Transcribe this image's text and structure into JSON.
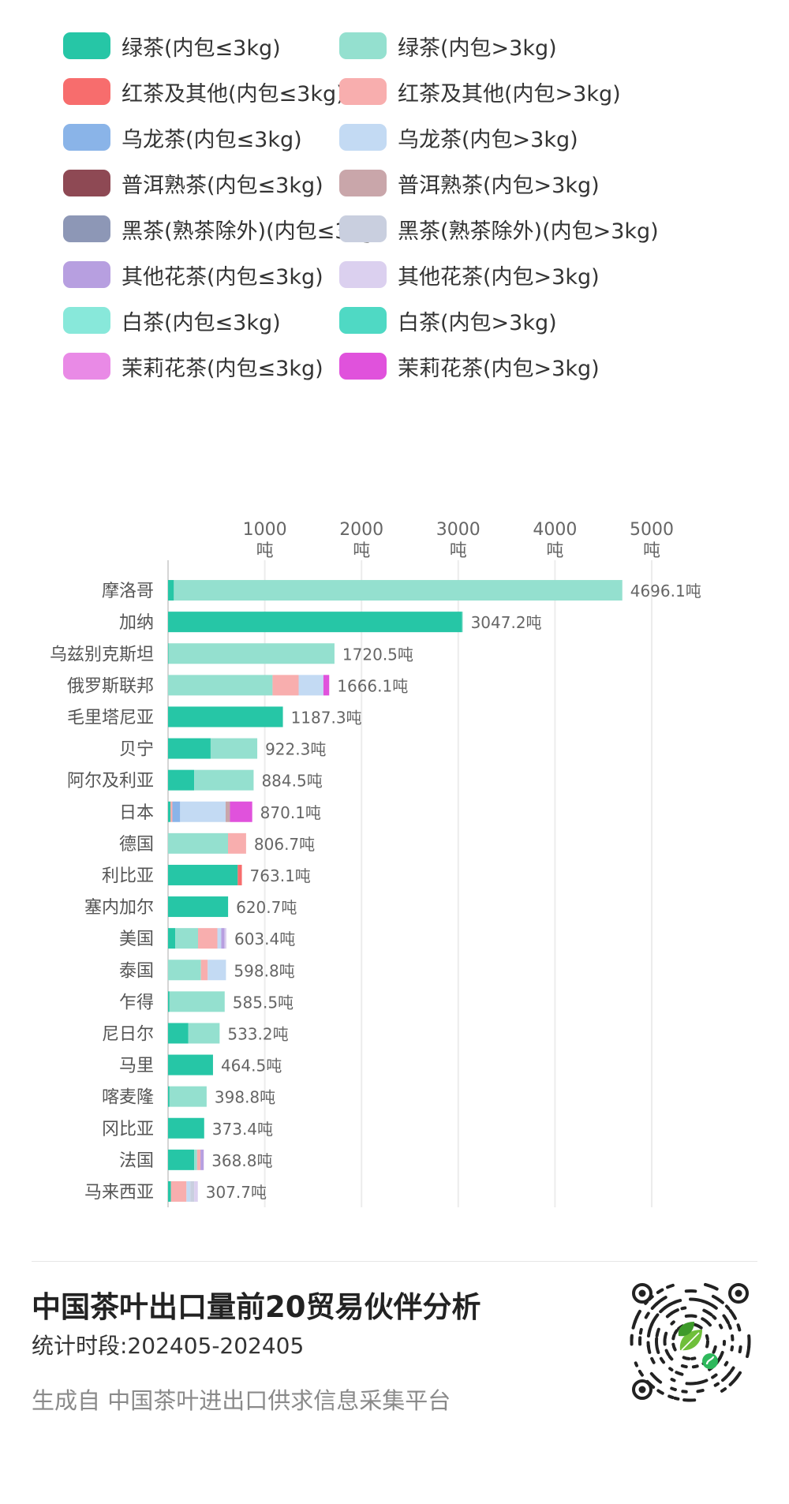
{
  "legend": [
    {
      "label": "绿茶(内包≤3kg)",
      "color": "#26c6a6"
    },
    {
      "label": "绿茶(内包>3kg)",
      "color": "#94e0cf"
    },
    {
      "label": "红茶及其他(内包≤3kg)",
      "color": "#f76d6d"
    },
    {
      "label": "红茶及其他(内包>3kg)",
      "color": "#f8aeae"
    },
    {
      "label": "乌龙茶(内包≤3kg)",
      "color": "#8ab4e8"
    },
    {
      "label": "乌龙茶(内包>3kg)",
      "color": "#c3daf3"
    },
    {
      "label": "普洱熟茶(内包≤3kg)",
      "color": "#8e4954"
    },
    {
      "label": "普洱熟茶(内包>3kg)",
      "color": "#c9a6aa"
    },
    {
      "label": "黑茶(熟茶除外)(内包≤3kg)",
      "color": "#8d97b6"
    },
    {
      "label": "黑茶(熟茶除外)(内包>3kg)",
      "color": "#c9cfdf"
    },
    {
      "label": "其他花茶(内包≤3kg)",
      "color": "#b79fe0"
    },
    {
      "label": "其他花茶(内包>3kg)",
      "color": "#dbd0ef"
    },
    {
      "label": "白茶(内包≤3kg)",
      "color": "#88e8da"
    },
    {
      "label": "白茶(内包>3kg)",
      "color": "#4fd9c4"
    },
    {
      "label": "茉莉花茶(内包≤3kg)",
      "color": "#e98ae6"
    },
    {
      "label": "茉莉花茶(内包>3kg)",
      "color": "#e052dc"
    }
  ],
  "chart_data": {
    "type": "bar",
    "orientation": "horizontal",
    "stacked": true,
    "unit": "吨",
    "xlim": [
      0,
      5000
    ],
    "xticks": [
      1000,
      2000,
      3000,
      4000,
      5000
    ],
    "xtick_labels": [
      {
        "value": "1000",
        "unit": "吨"
      },
      {
        "value": "2000",
        "unit": "吨"
      },
      {
        "value": "3000",
        "unit": "吨"
      },
      {
        "value": "4000",
        "unit": "吨"
      },
      {
        "value": "5000",
        "unit": "吨"
      }
    ],
    "grid": true,
    "legend_position": "top",
    "bars": [
      {
        "category": "摩洛哥",
        "total": 4696.1,
        "total_label": "4696.1吨",
        "segments": [
          {
            "s": 0,
            "v": 60
          },
          {
            "s": 1,
            "v": 4636.1
          }
        ]
      },
      {
        "category": "加纳",
        "total": 3047.2,
        "total_label": "3047.2吨",
        "segments": [
          {
            "s": 0,
            "v": 3040
          },
          {
            "s": 1,
            "v": 7.2
          }
        ]
      },
      {
        "category": "乌兹别克斯坦",
        "total": 1720.5,
        "total_label": "1720.5吨",
        "segments": [
          {
            "s": 0,
            "v": 5
          },
          {
            "s": 1,
            "v": 1715.5
          }
        ]
      },
      {
        "category": "俄罗斯联邦",
        "total": 1666.1,
        "total_label": "1666.1吨",
        "segments": [
          {
            "s": 1,
            "v": 1080
          },
          {
            "s": 3,
            "v": 270
          },
          {
            "s": 5,
            "v": 256.1
          },
          {
            "s": 15,
            "v": 60
          }
        ]
      },
      {
        "category": "毛里塔尼亚",
        "total": 1187.3,
        "total_label": "1187.3吨",
        "segments": [
          {
            "s": 0,
            "v": 1187.3
          }
        ]
      },
      {
        "category": "贝宁",
        "total": 922.3,
        "total_label": "922.3吨",
        "segments": [
          {
            "s": 0,
            "v": 440
          },
          {
            "s": 1,
            "v": 482.3
          }
        ]
      },
      {
        "category": "阿尔及利亚",
        "total": 884.5,
        "total_label": "884.5吨",
        "segments": [
          {
            "s": 0,
            "v": 270
          },
          {
            "s": 1,
            "v": 614.5
          }
        ]
      },
      {
        "category": "日本",
        "total": 870.1,
        "total_label": "870.1吨",
        "segments": [
          {
            "s": 0,
            "v": 25
          },
          {
            "s": 3,
            "v": 20
          },
          {
            "s": 4,
            "v": 80
          },
          {
            "s": 5,
            "v": 470
          },
          {
            "s": 7,
            "v": 45
          },
          {
            "s": 15,
            "v": 230.1
          }
        ]
      },
      {
        "category": "德国",
        "total": 806.7,
        "total_label": "806.7吨",
        "segments": [
          {
            "s": 1,
            "v": 620
          },
          {
            "s": 3,
            "v": 186.7
          }
        ]
      },
      {
        "category": "利比亚",
        "total": 763.1,
        "total_label": "763.1吨",
        "segments": [
          {
            "s": 0,
            "v": 720
          },
          {
            "s": 2,
            "v": 43.1
          }
        ]
      },
      {
        "category": "塞内加尔",
        "total": 620.7,
        "total_label": "620.7吨",
        "segments": [
          {
            "s": 0,
            "v": 620.7
          }
        ]
      },
      {
        "category": "美国",
        "total": 603.4,
        "total_label": "603.4吨",
        "segments": [
          {
            "s": 0,
            "v": 75
          },
          {
            "s": 1,
            "v": 235
          },
          {
            "s": 3,
            "v": 200
          },
          {
            "s": 5,
            "v": 40
          },
          {
            "s": 10,
            "v": 33.4
          },
          {
            "s": 11,
            "v": 20
          }
        ]
      },
      {
        "category": "泰国",
        "total": 598.8,
        "total_label": "598.8吨",
        "segments": [
          {
            "s": 1,
            "v": 340
          },
          {
            "s": 3,
            "v": 70
          },
          {
            "s": 5,
            "v": 188.8
          }
        ]
      },
      {
        "category": "乍得",
        "total": 585.5,
        "total_label": "585.5吨",
        "segments": [
          {
            "s": 0,
            "v": 15
          },
          {
            "s": 1,
            "v": 570.5
          }
        ]
      },
      {
        "category": "尼日尔",
        "total": 533.2,
        "total_label": "533.2吨",
        "segments": [
          {
            "s": 0,
            "v": 210
          },
          {
            "s": 1,
            "v": 323.2
          }
        ]
      },
      {
        "category": "马里",
        "total": 464.5,
        "total_label": "464.5吨",
        "segments": [
          {
            "s": 0,
            "v": 464.5
          }
        ]
      },
      {
        "category": "喀麦隆",
        "total": 398.8,
        "total_label": "398.8吨",
        "segments": [
          {
            "s": 0,
            "v": 15
          },
          {
            "s": 1,
            "v": 383.8
          }
        ]
      },
      {
        "category": "冈比亚",
        "total": 373.4,
        "total_label": "373.4吨",
        "segments": [
          {
            "s": 0,
            "v": 373.4
          }
        ]
      },
      {
        "category": "法国",
        "total": 368.8,
        "total_label": "368.8吨",
        "segments": [
          {
            "s": 0,
            "v": 270
          },
          {
            "s": 1,
            "v": 30
          },
          {
            "s": 3,
            "v": 35
          },
          {
            "s": 10,
            "v": 33.8
          }
        ]
      },
      {
        "category": "马来西亚",
        "total": 307.7,
        "total_label": "307.7吨",
        "segments": [
          {
            "s": 0,
            "v": 30
          },
          {
            "s": 3,
            "v": 160
          },
          {
            "s": 5,
            "v": 40
          },
          {
            "s": 9,
            "v": 40
          },
          {
            "s": 11,
            "v": 37.7
          }
        ]
      }
    ]
  },
  "footer": {
    "title": "中国茶叶出口量前20贸易伙伴分析",
    "period": "统计时段:202405-202405",
    "source": "生成自 中国茶叶进出口供求信息采集平台"
  },
  "qr_icon": "mini-program-qr-icon"
}
